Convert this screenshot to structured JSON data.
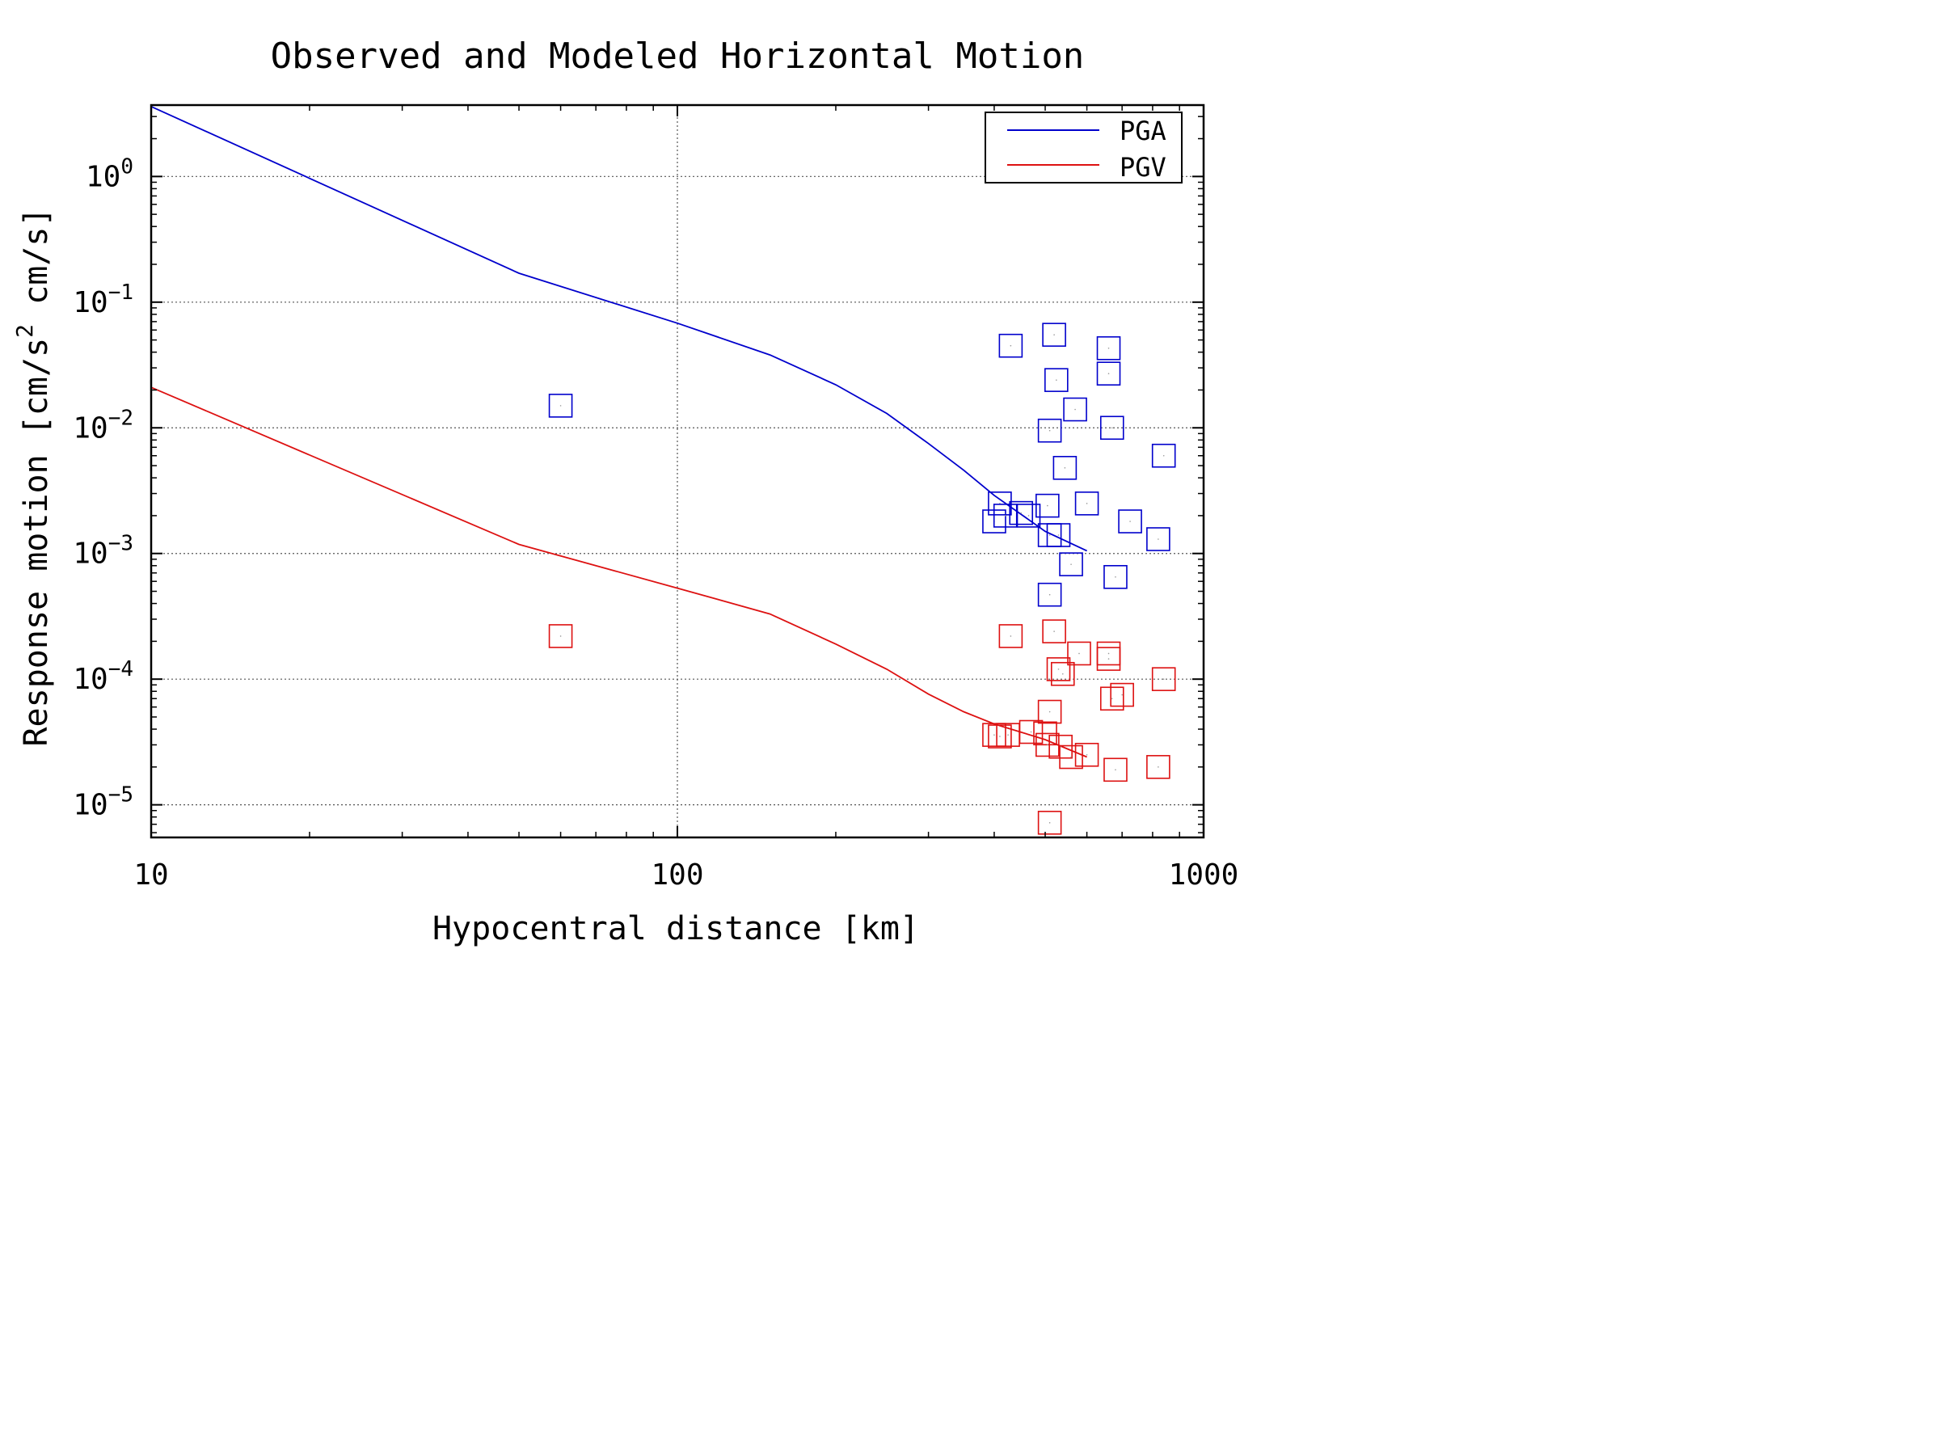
{
  "chart_data": {
    "type": "scatter",
    "title": "Observed and Modeled Horizontal Motion",
    "xlabel": "Hypocentral distance [km]",
    "ylabel": {
      "prefix": "Response motion  [cm/s",
      "superscript": "2",
      "suffix": "  cm/s]"
    },
    "x_scale": "log",
    "y_scale": "log",
    "xlim": [
      10,
      1000
    ],
    "ylim": [
      5.5e-06,
      3.7
    ],
    "grid": true,
    "legend_position": "top-right",
    "x_ticks": [
      {
        "value": 10,
        "label": "10"
      },
      {
        "value": 100,
        "label": "100"
      },
      {
        "value": 1000,
        "label": "1000"
      }
    ],
    "y_ticks": [
      {
        "value": 1,
        "base": "10",
        "exp": "0"
      },
      {
        "value": 0.1,
        "base": "10",
        "exp": "−1"
      },
      {
        "value": 0.01,
        "base": "10",
        "exp": "−2"
      },
      {
        "value": 0.001,
        "base": "10",
        "exp": "−3"
      },
      {
        "value": 0.0001,
        "base": "10",
        "exp": "−4"
      },
      {
        "value": 1e-05,
        "base": "10",
        "exp": "−5"
      }
    ],
    "series": [
      {
        "name": "PGA",
        "color": "#0000cc",
        "line": [
          [
            10,
            3.6
          ],
          [
            50,
            0.17
          ],
          [
            100,
            0.068
          ],
          [
            150,
            0.038
          ],
          [
            200,
            0.022
          ],
          [
            250,
            0.013
          ],
          [
            300,
            0.0075
          ],
          [
            350,
            0.0046
          ],
          [
            400,
            0.0029
          ],
          [
            500,
            0.0015
          ],
          [
            600,
            0.00105
          ]
        ],
        "points": [
          [
            60,
            0.015
          ],
          [
            430,
            0.045
          ],
          [
            520,
            0.055
          ],
          [
            660,
            0.043
          ],
          [
            660,
            0.027
          ],
          [
            525,
            0.024
          ],
          [
            570,
            0.014
          ],
          [
            510,
            0.0095
          ],
          [
            670,
            0.01
          ],
          [
            840,
            0.006
          ],
          [
            545,
            0.0048
          ],
          [
            410,
            0.0025
          ],
          [
            505,
            0.0024
          ],
          [
            600,
            0.0025
          ],
          [
            400,
            0.0018
          ],
          [
            420,
            0.002
          ],
          [
            450,
            0.0021
          ],
          [
            465,
            0.002
          ],
          [
            725,
            0.0018
          ],
          [
            820,
            0.0013
          ],
          [
            510,
            0.0014
          ],
          [
            530,
            0.0014
          ],
          [
            560,
            0.00082
          ],
          [
            680,
            0.00065
          ],
          [
            510,
            0.00047
          ]
        ]
      },
      {
        "name": "PGV",
        "color": "#dd1111",
        "line": [
          [
            10,
            0.021
          ],
          [
            50,
            0.00118
          ],
          [
            100,
            0.00053
          ],
          [
            150,
            0.00033
          ],
          [
            200,
            0.00019
          ],
          [
            250,
            0.00012
          ],
          [
            300,
            7.6e-05
          ],
          [
            350,
            5.5e-05
          ],
          [
            400,
            4.4e-05
          ],
          [
            500,
            3.3e-05
          ],
          [
            600,
            2.4e-05
          ]
        ],
        "points": [
          [
            60,
            0.00022
          ],
          [
            430,
            0.00022
          ],
          [
            520,
            0.00024
          ],
          [
            580,
            0.00016
          ],
          [
            660,
            0.00016
          ],
          [
            660,
            0.000145
          ],
          [
            530,
            0.00012
          ],
          [
            540,
            0.00011
          ],
          [
            840,
            0.0001
          ],
          [
            700,
            7.5e-05
          ],
          [
            670,
            7e-05
          ],
          [
            510,
            5.5e-05
          ],
          [
            400,
            3.6e-05
          ],
          [
            410,
            3.5e-05
          ],
          [
            425,
            3.6e-05
          ],
          [
            470,
            3.8e-05
          ],
          [
            500,
            3.7e-05
          ],
          [
            505,
            3e-05
          ],
          [
            535,
            2.9e-05
          ],
          [
            560,
            2.4e-05
          ],
          [
            600,
            2.5e-05
          ],
          [
            680,
            1.9e-05
          ],
          [
            820,
            2e-05
          ],
          [
            510,
            7.2e-06
          ]
        ]
      }
    ]
  }
}
